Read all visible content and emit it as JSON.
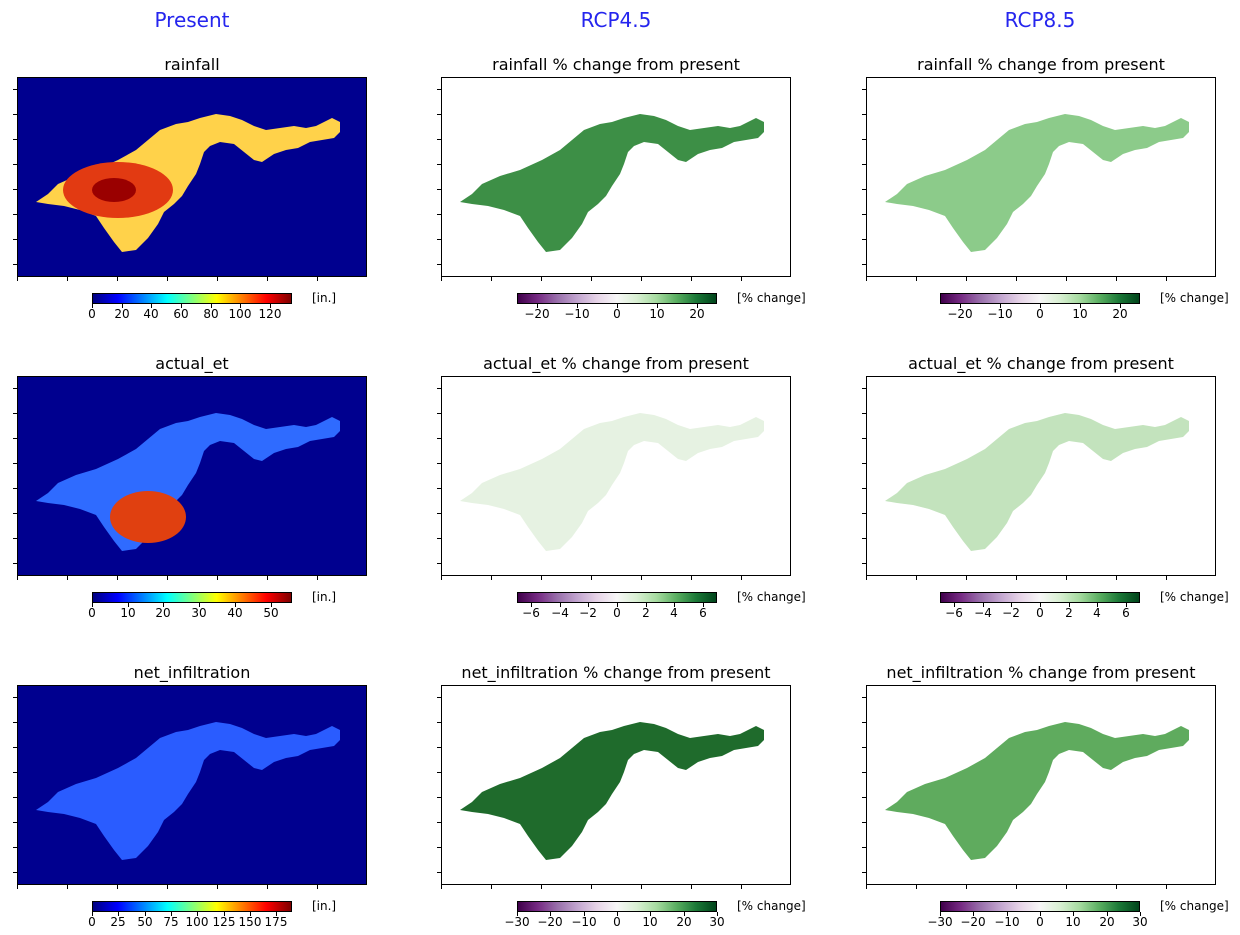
{
  "columns": [
    "Present",
    "RCP4.5",
    "RCP8.5"
  ],
  "colors": {
    "column_title": "#2525ee",
    "present_background": "#00008f",
    "change_colormap": [
      "#40004b",
      "#762a83",
      "#c2a5cf",
      "#f7f7f7",
      "#a6dba0",
      "#1b7837",
      "#00441b"
    ],
    "present_colormap": [
      "#00007f",
      "#0000ff",
      "#00ffff",
      "#ffff00",
      "#ff0000",
      "#7f0000"
    ]
  },
  "rows": [
    {
      "variable": "rainfall",
      "present": {
        "title": "rainfall",
        "colorbar": {
          "min": 0,
          "max": 135,
          "ticks": [
            "0",
            "20",
            "40",
            "60",
            "80",
            "100",
            "120"
          ],
          "tick_values": [
            0,
            20,
            40,
            60,
            80,
            100,
            120
          ],
          "unit": "[in.]"
        },
        "fill": "#ffd24a"
      },
      "rcp45": {
        "title": "rainfall % change from present",
        "colorbar": {
          "min": -25,
          "max": 25,
          "ticks": [
            "−20",
            "−10",
            "0",
            "10",
            "20"
          ],
          "tick_values": [
            -20,
            -10,
            0,
            10,
            20
          ],
          "unit": "[% change]"
        },
        "fill": "#3d8f46"
      },
      "rcp85": {
        "title": "rainfall % change from present",
        "colorbar": {
          "min": -25,
          "max": 25,
          "ticks": [
            "−20",
            "−10",
            "0",
            "10",
            "20"
          ],
          "tick_values": [
            -20,
            -10,
            0,
            10,
            20
          ],
          "unit": "[% change]"
        },
        "fill": "#8ccb8a"
      }
    },
    {
      "variable": "actual_et",
      "present": {
        "title": "actual_et",
        "colorbar": {
          "min": 0,
          "max": 56,
          "ticks": [
            "0",
            "10",
            "20",
            "30",
            "40",
            "50"
          ],
          "tick_values": [
            0,
            10,
            20,
            30,
            40,
            50
          ],
          "unit": "[in.]"
        },
        "fill": "#2f6bff"
      },
      "rcp45": {
        "title": "actual_et % change from present",
        "colorbar": {
          "min": -7,
          "max": 7,
          "ticks": [
            "−6",
            "−4",
            "−2",
            "0",
            "2",
            "4",
            "6"
          ],
          "tick_values": [
            -6,
            -4,
            -2,
            0,
            2,
            4,
            6
          ],
          "unit": "[% change]"
        },
        "fill": "#e6f2e2"
      },
      "rcp85": {
        "title": "actual_et % change from present",
        "colorbar": {
          "min": -7,
          "max": 7,
          "ticks": [
            "−6",
            "−4",
            "−2",
            "0",
            "2",
            "4",
            "6"
          ],
          "tick_values": [
            -6,
            -4,
            -2,
            0,
            2,
            4,
            6
          ],
          "unit": "[% change]"
        },
        "fill": "#c3e3bd"
      }
    },
    {
      "variable": "net_infiltration",
      "present": {
        "title": "net_infiltration",
        "colorbar": {
          "min": 0,
          "max": 190,
          "ticks": [
            "0",
            "25",
            "50",
            "75",
            "100",
            "125",
            "150",
            "175"
          ],
          "tick_values": [
            0,
            25,
            50,
            75,
            100,
            125,
            150,
            175
          ],
          "unit": "[in.]"
        },
        "fill": "#2a5cff"
      },
      "rcp45": {
        "title": "net_infiltration % change from present",
        "colorbar": {
          "min": -30,
          "max": 30,
          "ticks": [
            "−30",
            "−20",
            "−10",
            "0",
            "10",
            "20",
            "30"
          ],
          "tick_values": [
            -30,
            -20,
            -10,
            0,
            10,
            20,
            30
          ],
          "unit": "[% change]"
        },
        "fill": "#1f6b2c"
      },
      "rcp85": {
        "title": "net_infiltration % change from present",
        "colorbar": {
          "min": -30,
          "max": 30,
          "ticks": [
            "−30",
            "−20",
            "−10",
            "0",
            "10",
            "20",
            "30"
          ],
          "tick_values": [
            -30,
            -20,
            -10,
            0,
            10,
            20,
            30
          ],
          "unit": "[% change]"
        },
        "fill": "#5fab5e"
      }
    }
  ]
}
